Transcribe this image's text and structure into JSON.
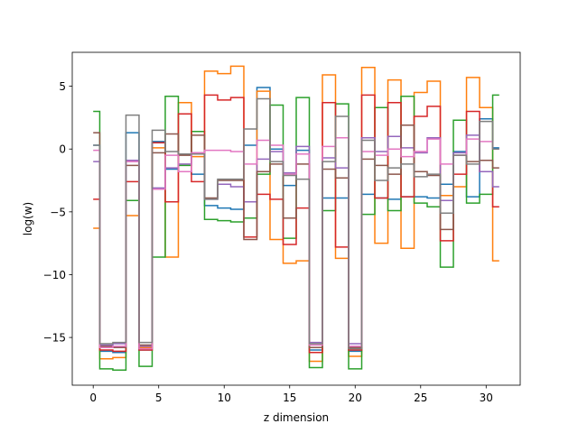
{
  "chart_data": {
    "type": "line",
    "drawstyle": "steps-mid",
    "title": "",
    "xlabel": "z dimension",
    "ylabel": "log(w)",
    "xlim": [
      -1.6,
      32.6
    ],
    "ylim": [
      -18.8,
      7.7
    ],
    "xticks": [
      0,
      5,
      10,
      15,
      20,
      25,
      30
    ],
    "yticks": [
      -15,
      -10,
      -5,
      0,
      5
    ],
    "grid": false,
    "legend": "none",
    "x": [
      0,
      1,
      2,
      3,
      4,
      5,
      6,
      7,
      8,
      9,
      10,
      11,
      12,
      13,
      14,
      15,
      16,
      17,
      18,
      19,
      20,
      21,
      22,
      23,
      24,
      25,
      26,
      27,
      28,
      29,
      30,
      31
    ],
    "series": [
      {
        "color": "#1f77b4",
        "values": [
          0.3,
          -16.1,
          -16.2,
          1.3,
          -16.0,
          0.6,
          -1.6,
          -1.8,
          -2.0,
          -4.5,
          -4.7,
          -4.8,
          0.3,
          4.9,
          0.0,
          -2.9,
          -0.1,
          -16.0,
          -3.9,
          -3.9,
          -16.1,
          -3.6,
          -3.9,
          -4.0,
          -3.8,
          -3.8,
          -3.9,
          -2.8,
          -0.2,
          -3.8,
          2.4,
          0.1
        ]
      },
      {
        "color": "#ff7f0e",
        "values": [
          -6.3,
          -16.7,
          -16.6,
          -5.3,
          -15.8,
          0.1,
          -8.6,
          3.7,
          -0.6,
          6.2,
          6.0,
          6.6,
          -4.2,
          4.6,
          -7.2,
          -9.1,
          -8.9,
          -16.9,
          5.9,
          -8.7,
          -16.5,
          6.5,
          -7.5,
          5.5,
          -7.9,
          4.5,
          5.4,
          -3.7,
          -3.0,
          5.7,
          3.3,
          -8.9
        ]
      },
      {
        "color": "#2ca02c",
        "values": [
          3.0,
          -17.5,
          -17.6,
          -4.1,
          -17.3,
          -8.6,
          4.2,
          -1.3,
          1.4,
          -5.6,
          -5.7,
          -5.8,
          -5.5,
          -2.0,
          3.5,
          -7.1,
          4.1,
          -17.4,
          -4.9,
          3.6,
          -17.5,
          -5.2,
          3.3,
          -4.9,
          4.2,
          -4.3,
          -4.6,
          -9.4,
          2.3,
          -4.3,
          -3.6,
          4.3
        ]
      },
      {
        "color": "#d62728",
        "values": [
          -4.0,
          -16.0,
          -16.1,
          -2.6,
          -16.0,
          0.5,
          -4.2,
          2.8,
          -2.6,
          4.3,
          3.9,
          4.1,
          -7.0,
          -3.6,
          -4.0,
          -7.6,
          -4.7,
          -16.2,
          3.7,
          -7.8,
          -16.0,
          4.3,
          -3.9,
          3.7,
          -3.8,
          2.6,
          3.4,
          -7.3,
          -2.0,
          3.0,
          -1.8,
          -4.6
        ]
      },
      {
        "color": "#9467bd",
        "values": [
          -1.0,
          -15.6,
          -15.5,
          -0.9,
          -15.7,
          -3.1,
          -1.5,
          -1.2,
          -0.3,
          -4.0,
          -2.8,
          -3.0,
          -4.2,
          -0.8,
          -0.2,
          -1.9,
          0.2,
          -15.4,
          -0.7,
          -1.5,
          -15.5,
          0.9,
          -0.2,
          1.0,
          0.1,
          -0.3,
          0.9,
          -4.1,
          -0.3,
          1.1,
          -1.8,
          -3.0
        ]
      },
      {
        "color": "#8c564b",
        "values": [
          1.3,
          -15.7,
          -15.8,
          -1.3,
          -15.6,
          -0.3,
          1.2,
          -0.5,
          1.1,
          -3.9,
          -2.5,
          -2.5,
          -7.2,
          -1.8,
          -1.2,
          -5.5,
          -1.2,
          -15.8,
          -1.6,
          -2.3,
          -15.8,
          -0.8,
          -1.3,
          -2.0,
          1.9,
          -1.8,
          -2.1,
          -6.4,
          -0.5,
          -1.0,
          -0.9,
          -1.5
        ]
      },
      {
        "color": "#e377c2",
        "values": [
          -0.1,
          -15.8,
          -15.7,
          -1.0,
          -15.9,
          -3.2,
          -0.5,
          -1.8,
          -0.3,
          -0.1,
          -0.1,
          -0.2,
          -1.2,
          0.7,
          0.3,
          -2.0,
          -0.4,
          -15.6,
          0.2,
          0.9,
          -15.7,
          -0.2,
          -0.5,
          0.0,
          -0.6,
          -0.2,
          0.8,
          -1.2,
          -0.5,
          0.8,
          0.6,
          0.0
        ]
      },
      {
        "color": "#7f7f7f",
        "values": [
          0.3,
          -15.5,
          -15.4,
          2.7,
          -15.4,
          1.5,
          -0.2,
          -0.4,
          -0.4,
          -4.0,
          -2.4,
          -2.4,
          1.6,
          4.0,
          -1.0,
          -2.1,
          -2.4,
          -15.5,
          -1.0,
          2.6,
          -15.9,
          0.7,
          -2.5,
          -1.5,
          -1.2,
          -2.2,
          -2.0,
          -5.1,
          -0.5,
          -1.2,
          2.2,
          0.0
        ]
      }
    ]
  }
}
